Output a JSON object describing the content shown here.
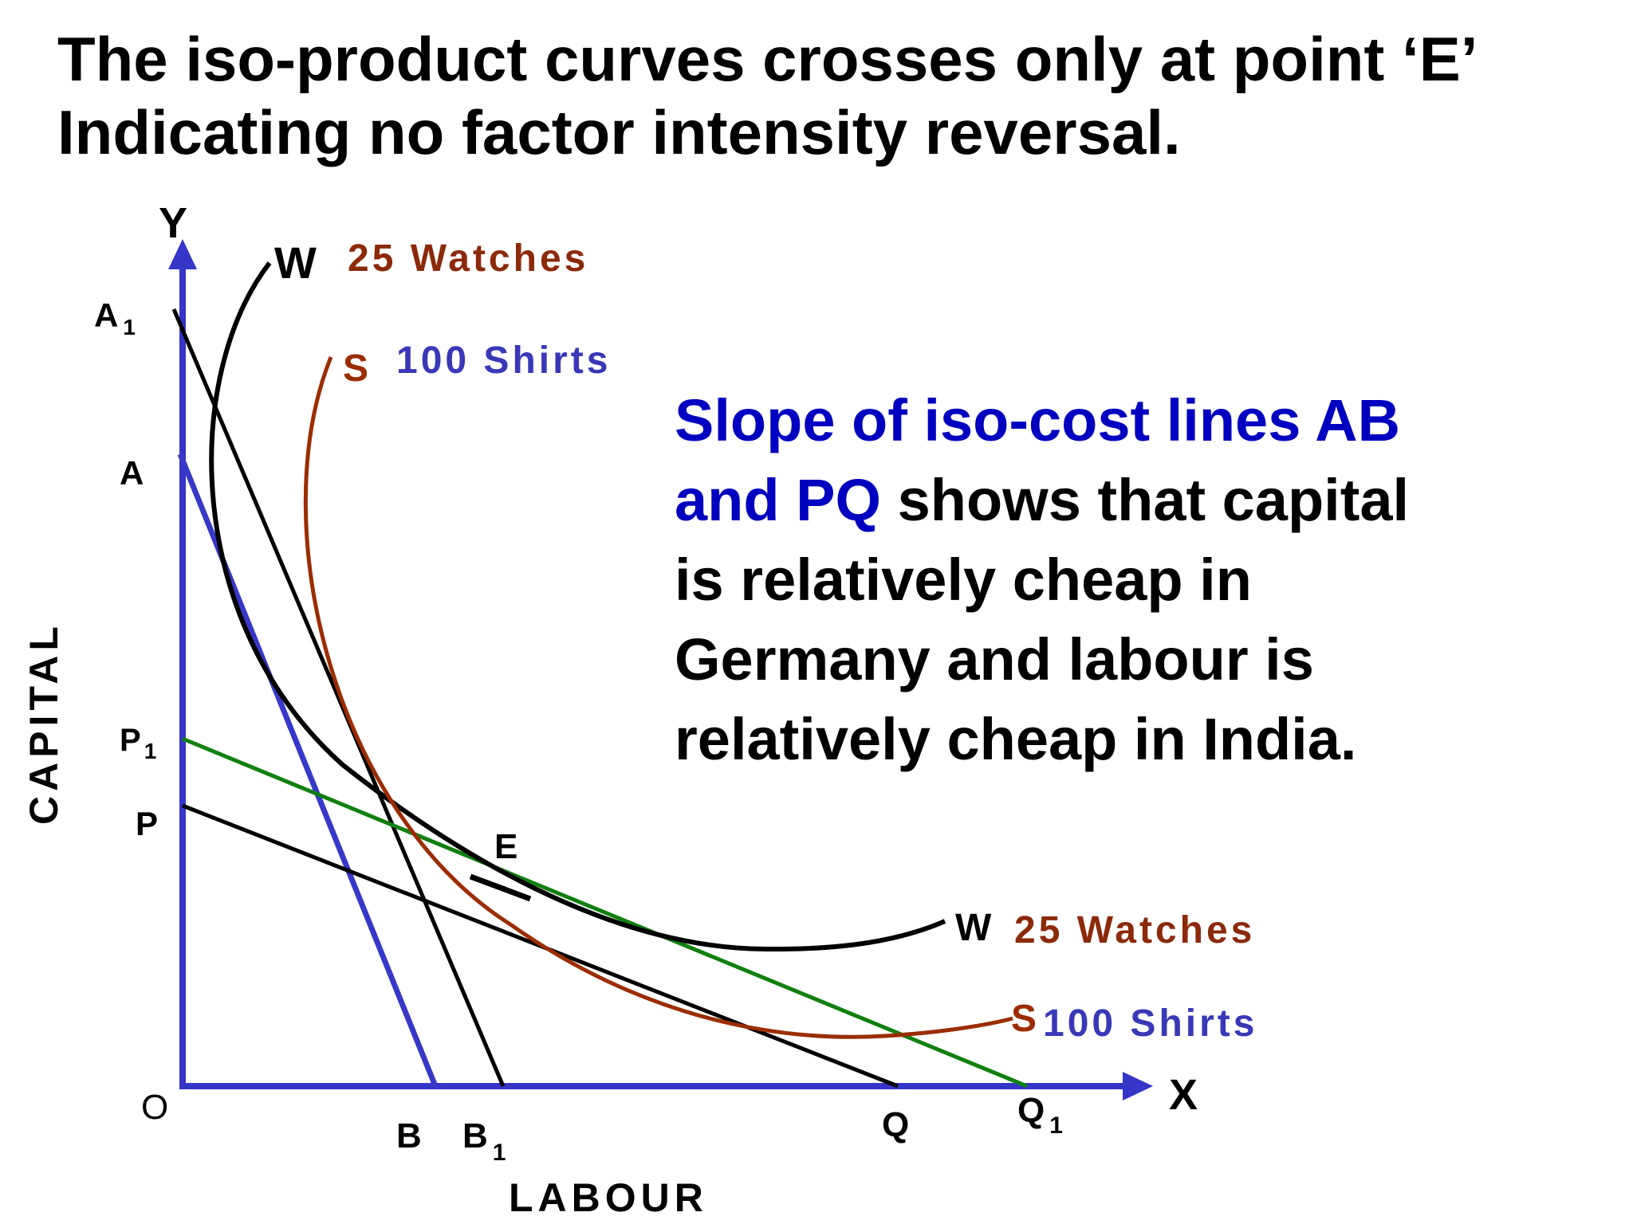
{
  "title": {
    "line1": "The iso-product curves crosses only at point ‘E’",
    "line2": "Indicating no factor intensity reversal."
  },
  "note": {
    "highlight1": "Slope of iso-cost lines AB",
    "highlight2": "and PQ",
    "rest1": " shows that capital",
    "line3": "is relatively cheap in",
    "line4": "Germany and labour is",
    "line5": "relatively cheap in India."
  },
  "axes": {
    "y_letter": "Y",
    "x_letter": "X",
    "origin": "O",
    "y_title": "CAPITAL",
    "x_title": "LABOUR"
  },
  "points": {
    "A1": "A",
    "A1_sub": "1",
    "A": "A",
    "P1": "P",
    "P1_sub": "1",
    "P": "P",
    "B": "B",
    "B1": "B",
    "B1_sub": "1",
    "Q": "Q",
    "Q1": "Q",
    "Q1_sub": "1",
    "E": "E"
  },
  "curves": {
    "watches_letter": "W",
    "watches_label": "25 Watches",
    "shirts_letter": "S",
    "shirts_label": "100 Shirts"
  },
  "colors": {
    "axis": "#3535c8",
    "line_ab": "#3838c8",
    "line_p1q1": "#108010",
    "watches_curve": "#000000",
    "shirts_curve": "#9b2d00",
    "watches_text": "#8b2a0a",
    "shirts_text": "#3838b8",
    "highlight_text": "#0000c0"
  }
}
